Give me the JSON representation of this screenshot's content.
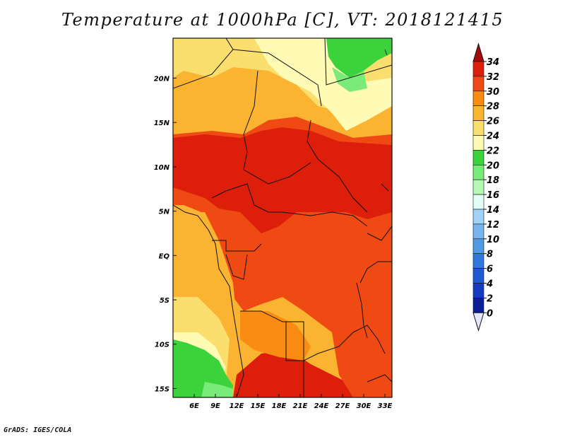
{
  "title": "Temperature at 1000hPa [C], VT: 2018121415",
  "credit": "GrADS: IGES/COLA",
  "map": {
    "lon_range": [
      3,
      34
    ],
    "lat_range": [
      -16,
      24.5
    ],
    "x_ticks": [
      {
        "value": 6,
        "label": "6E"
      },
      {
        "value": 9,
        "label": "9E"
      },
      {
        "value": 12,
        "label": "12E"
      },
      {
        "value": 15,
        "label": "15E"
      },
      {
        "value": 18,
        "label": "18E"
      },
      {
        "value": 21,
        "label": "21E"
      },
      {
        "value": 24,
        "label": "24E"
      },
      {
        "value": 27,
        "label": "27E"
      },
      {
        "value": 30,
        "label": "30E"
      },
      {
        "value": 33,
        "label": "33E"
      }
    ],
    "y_ticks": [
      {
        "value": 20,
        "label": "20N"
      },
      {
        "value": 15,
        "label": "15N"
      },
      {
        "value": 10,
        "label": "10N"
      },
      {
        "value": 5,
        "label": "5N"
      },
      {
        "value": 0,
        "label": "EQ"
      },
      {
        "value": -5,
        "label": "5S"
      },
      {
        "value": -10,
        "label": "10S"
      },
      {
        "value": -15,
        "label": "15S"
      }
    ]
  },
  "colorbar": {
    "labels": [
      "34",
      "32",
      "30",
      "28",
      "26",
      "24",
      "22",
      "20",
      "18",
      "16",
      "14",
      "12",
      "10",
      "8",
      "6",
      "4",
      "2",
      "0"
    ],
    "colors": [
      "#a50a0a",
      "#dc1e0a",
      "#f04a14",
      "#fa8c14",
      "#fab432",
      "#fade6e",
      "#fffab4",
      "#3cd23c",
      "#78eb78",
      "#b4fab4",
      "#e1fff5",
      "#a0d2fa",
      "#78b4f0",
      "#509ae6",
      "#3278dc",
      "#1e5ad2",
      "#143cbe",
      "#0a1e96",
      "#0a0a6e",
      "#e6e6fa"
    ]
  }
}
